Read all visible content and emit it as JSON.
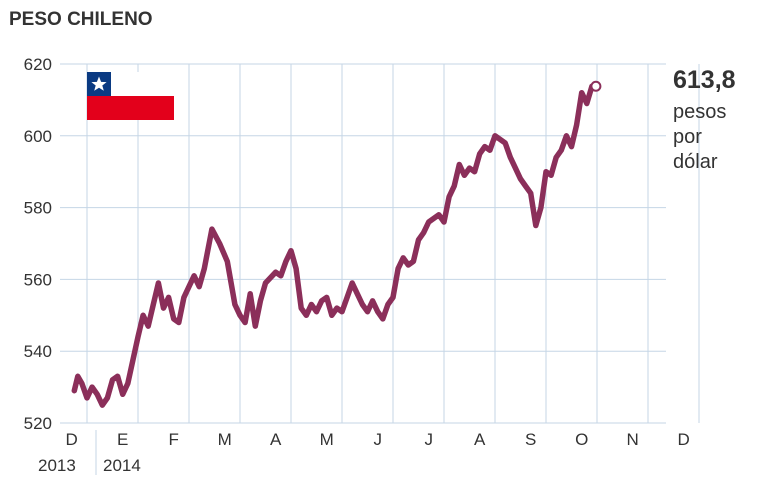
{
  "title": "PESO CHILENO",
  "annotation": {
    "value": "613,8",
    "unit_lines": [
      "pesos",
      "por",
      "dólar"
    ]
  },
  "colors": {
    "line": "#8b2f5a",
    "grid": "#c5d6e6",
    "flag_blue": "#0a3a82",
    "flag_red": "#e3001b"
  },
  "icons": [
    "chile-flag-icon"
  ],
  "chart_data": {
    "type": "line",
    "title": "PESO CHILENO",
    "xlabel": "",
    "ylabel": "",
    "ylim": [
      520,
      620
    ],
    "yticks": [
      520,
      540,
      560,
      580,
      600,
      620
    ],
    "grid": true,
    "x_unit": "month index (0 = Dec 2013, 12 = Dec 2014)",
    "month_labels": [
      "D",
      "E",
      "F",
      "M",
      "A",
      "M",
      "J",
      "J",
      "A",
      "S",
      "O",
      "N",
      "D"
    ],
    "year_labels": [
      "2013",
      "2014"
    ],
    "series": [
      {
        "values": [
          [
            -0.25,
            529
          ],
          [
            -0.18,
            533
          ],
          [
            -0.1,
            531
          ],
          [
            0.0,
            527
          ],
          [
            0.1,
            530
          ],
          [
            0.2,
            528
          ],
          [
            0.3,
            525
          ],
          [
            0.4,
            527
          ],
          [
            0.5,
            532
          ],
          [
            0.6,
            533
          ],
          [
            0.7,
            528
          ],
          [
            0.8,
            531
          ],
          [
            1.0,
            544
          ],
          [
            1.1,
            550
          ],
          [
            1.2,
            547
          ],
          [
            1.3,
            553
          ],
          [
            1.4,
            559
          ],
          [
            1.5,
            552
          ],
          [
            1.6,
            555
          ],
          [
            1.7,
            549
          ],
          [
            1.8,
            548
          ],
          [
            1.9,
            555
          ],
          [
            2.0,
            558
          ],
          [
            2.1,
            561
          ],
          [
            2.2,
            558
          ],
          [
            2.3,
            563
          ],
          [
            2.45,
            574
          ],
          [
            2.6,
            570
          ],
          [
            2.75,
            565
          ],
          [
            2.9,
            553
          ],
          [
            3.0,
            550
          ],
          [
            3.1,
            548
          ],
          [
            3.2,
            556
          ],
          [
            3.3,
            547
          ],
          [
            3.4,
            554
          ],
          [
            3.5,
            559
          ],
          [
            3.7,
            562
          ],
          [
            3.8,
            561
          ],
          [
            3.9,
            565
          ],
          [
            4.0,
            568
          ],
          [
            4.1,
            563
          ],
          [
            4.2,
            552
          ],
          [
            4.3,
            550
          ],
          [
            4.4,
            553
          ],
          [
            4.5,
            551
          ],
          [
            4.6,
            554
          ],
          [
            4.7,
            555
          ],
          [
            4.8,
            550
          ],
          [
            4.9,
            552
          ],
          [
            5.0,
            551
          ],
          [
            5.1,
            555
          ],
          [
            5.2,
            559
          ],
          [
            5.3,
            556
          ],
          [
            5.4,
            553
          ],
          [
            5.5,
            551
          ],
          [
            5.6,
            554
          ],
          [
            5.7,
            551
          ],
          [
            5.8,
            549
          ],
          [
            5.9,
            553
          ],
          [
            6.0,
            555
          ],
          [
            6.1,
            563
          ],
          [
            6.2,
            566
          ],
          [
            6.3,
            564
          ],
          [
            6.4,
            565
          ],
          [
            6.5,
            571
          ],
          [
            6.6,
            573
          ],
          [
            6.7,
            576
          ],
          [
            6.8,
            577
          ],
          [
            6.9,
            578
          ],
          [
            7.0,
            576
          ],
          [
            7.1,
            583
          ],
          [
            7.2,
            586
          ],
          [
            7.3,
            592
          ],
          [
            7.4,
            589
          ],
          [
            7.5,
            591
          ],
          [
            7.6,
            590
          ],
          [
            7.7,
            595
          ],
          [
            7.8,
            597
          ],
          [
            7.9,
            596
          ],
          [
            8.0,
            600
          ],
          [
            8.1,
            599
          ],
          [
            8.2,
            598
          ],
          [
            8.3,
            594
          ],
          [
            8.4,
            591
          ],
          [
            8.5,
            588
          ],
          [
            8.6,
            586
          ],
          [
            8.7,
            584
          ],
          [
            8.8,
            575
          ],
          [
            8.9,
            580
          ],
          [
            9.0,
            590
          ],
          [
            9.1,
            589
          ],
          [
            9.2,
            594
          ],
          [
            9.3,
            596
          ],
          [
            9.4,
            600
          ],
          [
            9.5,
            597
          ],
          [
            9.6,
            603
          ],
          [
            9.7,
            612
          ],
          [
            9.8,
            609
          ],
          [
            9.9,
            613.8
          ]
        ]
      }
    ]
  }
}
